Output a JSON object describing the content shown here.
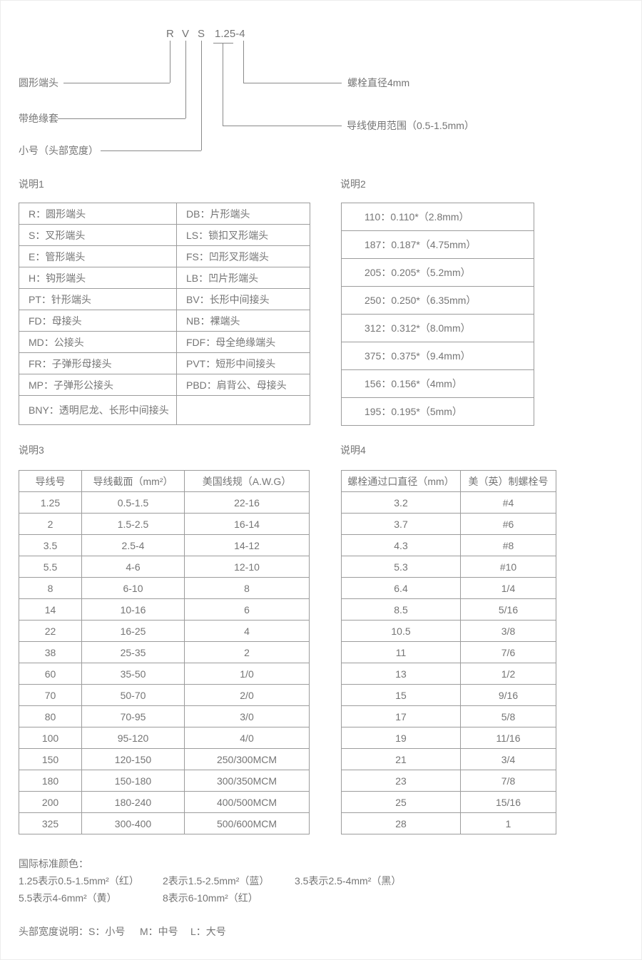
{
  "colors": {
    "text": "#757575",
    "table_border": "#9c9c9c",
    "diagram_line": "#8a8a8a",
    "page_bg": "#ffffff"
  },
  "diagram": {
    "code": {
      "part1": "R",
      "part2": "V",
      "part3": "S",
      "part4": "1.25-4"
    },
    "left_labels": {
      "r": "圆形端头",
      "v": "带绝缘套",
      "s": "小号（头部宽度）"
    },
    "right_labels": {
      "bolt": "螺栓直径4mm",
      "wire_range": "导线使用范围（0.5-1.5mm）"
    }
  },
  "section1": {
    "title": "说明1",
    "rows": [
      [
        "R：圆形端头",
        "DB：片形端头"
      ],
      [
        "S：叉形端头",
        "LS：锁扣叉形端头"
      ],
      [
        "E：管形端头",
        "FS：凹形叉形端头"
      ],
      [
        "H：钩形端头",
        "LB：凹片形端头"
      ],
      [
        "PT：针形端头",
        "BV：长形中间接头"
      ],
      [
        "FD：母接头",
        "NB：裸端头"
      ],
      [
        "MD：公接头",
        "FDF：母全绝缘端头"
      ],
      [
        "FR：子弹形母接头",
        "PVT：短形中间接头"
      ],
      [
        "MP：子弹形公接头",
        "PBD：肩背公、母接头"
      ],
      [
        "BNY：透明尼龙、长形中间接头",
        ""
      ]
    ]
  },
  "section2": {
    "title": "说明2",
    "rows": [
      "110：0.110*（2.8mm）",
      "187：0.187*（4.75mm）",
      "205：0.205*（5.2mm）",
      "250：0.250*（6.35mm）",
      "312：0.312*（8.0mm）",
      "375：0.375*（9.4mm）",
      "156：0.156*（4mm）",
      "195：0.195*（5mm）"
    ]
  },
  "section3": {
    "title": "说明3",
    "headers": [
      "导线号",
      "导线截面（mm²）",
      "美国线规（A.W.G）"
    ],
    "rows": [
      [
        "1.25",
        "0.5-1.5",
        "22-16"
      ],
      [
        "2",
        "1.5-2.5",
        "16-14"
      ],
      [
        "3.5",
        "2.5-4",
        "14-12"
      ],
      [
        "5.5",
        "4-6",
        "12-10"
      ],
      [
        "8",
        "6-10",
        "8"
      ],
      [
        "14",
        "10-16",
        "6"
      ],
      [
        "22",
        "16-25",
        "4"
      ],
      [
        "38",
        "25-35",
        "2"
      ],
      [
        "60",
        "35-50",
        "1/0"
      ],
      [
        "70",
        "50-70",
        "2/0"
      ],
      [
        "80",
        "70-95",
        "3/0"
      ],
      [
        "100",
        "95-120",
        "4/0"
      ],
      [
        "150",
        "120-150",
        "250/300MCM"
      ],
      [
        "180",
        "150-180",
        "300/350MCM"
      ],
      [
        "200",
        "180-240",
        "400/500MCM"
      ],
      [
        "325",
        "300-400",
        "500/600MCM"
      ]
    ]
  },
  "section4": {
    "title": "说明4",
    "headers": [
      "螺栓通过口直径（mm）",
      "美（英）制螺栓号"
    ],
    "rows": [
      [
        "3.2",
        "#4"
      ],
      [
        "3.7",
        "#6"
      ],
      [
        "4.3",
        "#8"
      ],
      [
        "5.3",
        "#10"
      ],
      [
        "6.4",
        "1/4"
      ],
      [
        "8.5",
        "5/16"
      ],
      [
        "10.5",
        "3/8"
      ],
      [
        "11",
        "7/6"
      ],
      [
        "13",
        "1/2"
      ],
      [
        "15",
        "9/16"
      ],
      [
        "17",
        "5/8"
      ],
      [
        "19",
        "11/16"
      ],
      [
        "21",
        "3/4"
      ],
      [
        "23",
        "7/8"
      ],
      [
        "25",
        "15/16"
      ],
      [
        "28",
        "1"
      ]
    ]
  },
  "footer": {
    "color_title": "国际标准颜色：",
    "color_line1": [
      "1.25表示0.5-1.5mm²（红）",
      "2表示1.5-2.5mm²（蓝）",
      "3.5表示2.5-4mm²（黑）"
    ],
    "color_line2": [
      "5.5表示4-6mm²（黄）",
      "8表示6-10mm²（红）"
    ],
    "head_width": [
      "头部宽度说明：S：小号",
      "M：中号",
      "L：大号"
    ]
  }
}
